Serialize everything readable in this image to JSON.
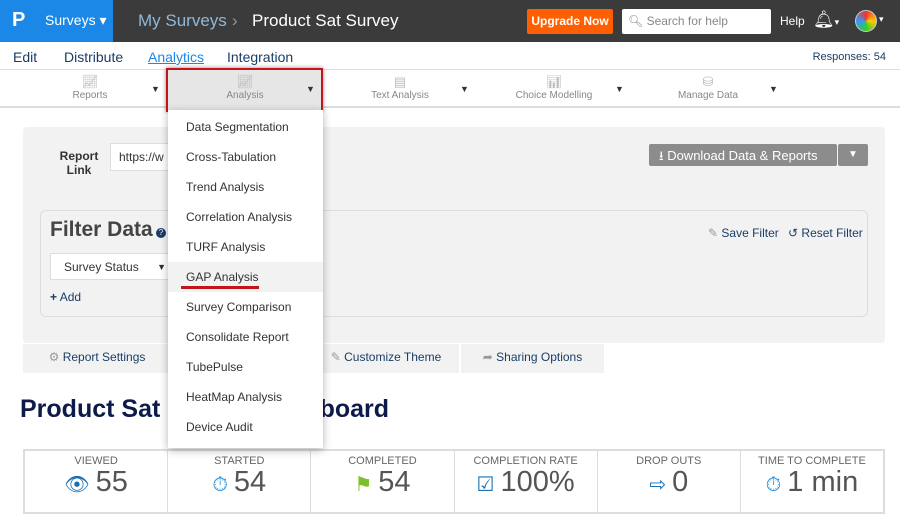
{
  "header": {
    "logo": "P",
    "product": "Surveys",
    "breadcrumb": [
      "My Surveys",
      "Product Sat Survey"
    ],
    "upgrade": "Upgrade Now",
    "search_placeholder": "Search for help",
    "help": "Help"
  },
  "nav": {
    "items": [
      "Edit",
      "Distribute",
      "Analytics",
      "Integration"
    ],
    "active": "Analytics",
    "responses": "Responses: 54"
  },
  "toolbar": {
    "items": [
      "Reports",
      "Analysis",
      "Text Analysis",
      "Choice Modelling",
      "Manage Data"
    ],
    "active": "Analysis"
  },
  "report": {
    "link_label": "Report Link",
    "link_value": "https://w",
    "download": "Download Data & Reports"
  },
  "filter": {
    "title": "Filter Data",
    "select": "Survey Status",
    "add": "Add",
    "save": "Save Filter",
    "reset": "Reset Filter"
  },
  "tabs": [
    "Report Settings",
    "Customize Theme",
    "Sharing Options"
  ],
  "dashboard_title": "Product Sat Survey Dashboard",
  "dashboard_title_visible": [
    "Product Sat",
    "hboard"
  ],
  "stats": [
    {
      "label": "VIEWED",
      "value": "55",
      "icon": "eye-icon"
    },
    {
      "label": "STARTED",
      "value": "54",
      "icon": "stopwatch-icon"
    },
    {
      "label": "COMPLETED",
      "value": "54",
      "icon": "flag-icon"
    },
    {
      "label": "COMPLETION RATE",
      "value": "100%",
      "icon": "checkbox-icon"
    },
    {
      "label": "DROP OUTS",
      "value": "0",
      "icon": "exit-icon"
    },
    {
      "label": "TIME TO COMPLETE",
      "value": "1 min",
      "icon": "stopwatch-icon"
    }
  ],
  "menu": {
    "items": [
      "Data Segmentation",
      "Cross-Tabulation",
      "Trend Analysis",
      "Correlation Analysis",
      "TURF Analysis",
      "GAP Analysis",
      "Survey Comparison",
      "Consolidate Report",
      "TubePulse",
      "HeatMap Analysis",
      "Device Audit"
    ],
    "highlighted": "GAP Analysis"
  },
  "colors": {
    "brand": "#1b87e6",
    "upgrade": "#ff5f00",
    "highlight": "#c2151b",
    "link": "#1a3d66"
  }
}
